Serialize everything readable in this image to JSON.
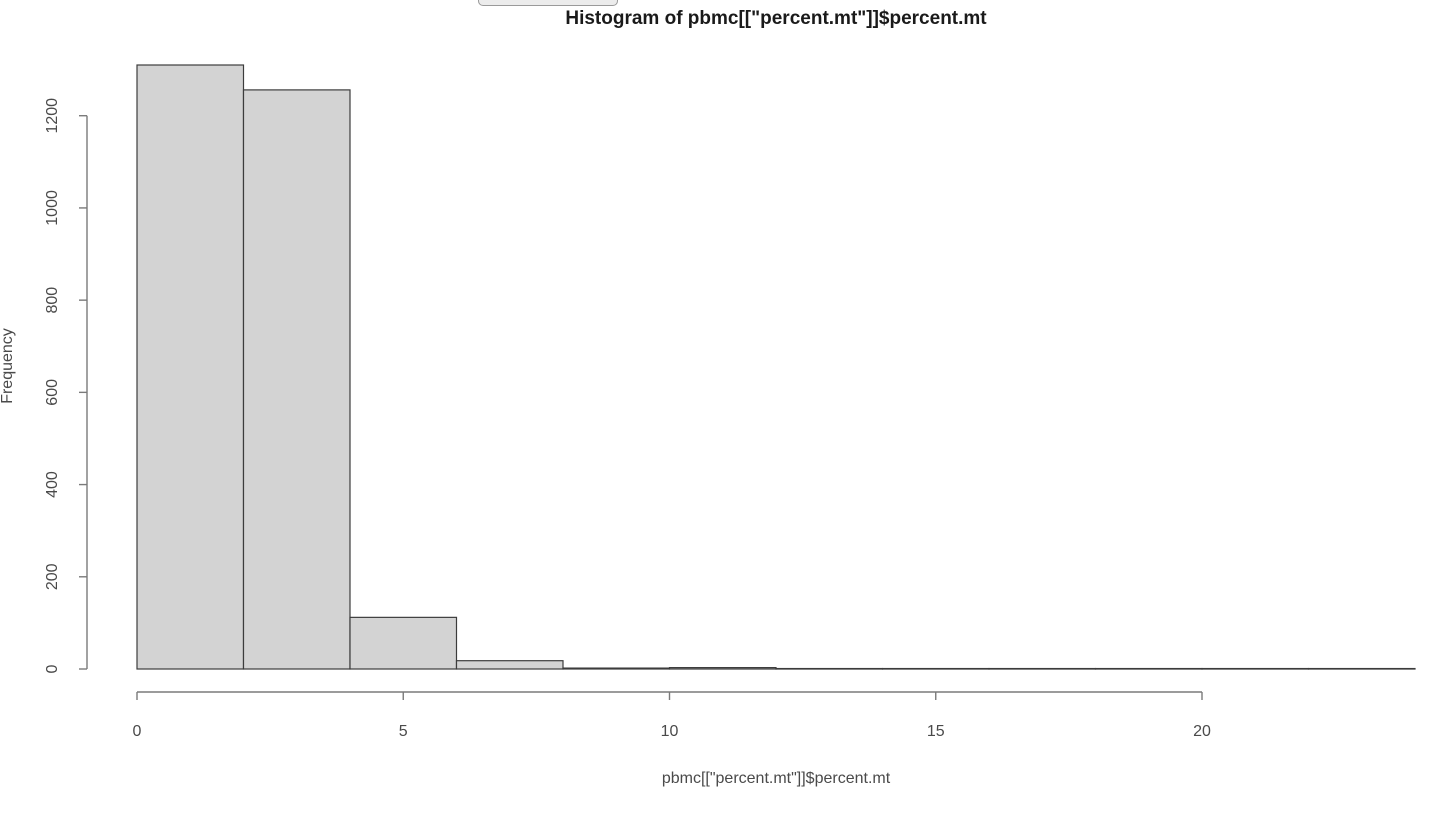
{
  "chart_data": {
    "type": "bar",
    "title": "Histogram of pbmc[[\"percent.mt\"]]$percent.mt",
    "xlabel": "pbmc[[\"percent.mt\"]]$percent.mt",
    "ylabel": "Frequency",
    "bin_edges": [
      0,
      2,
      4,
      6,
      8,
      10,
      12,
      14,
      16,
      18,
      20,
      22,
      24
    ],
    "values": [
      1310,
      1256,
      112,
      18,
      2,
      3,
      1,
      1,
      1,
      1,
      1,
      1
    ],
    "xlim": [
      0,
      24
    ],
    "ylim": [
      0,
      1310
    ],
    "x_ticks": [
      0,
      5,
      10,
      15,
      20
    ],
    "x_tick_labels": [
      "0",
      "5",
      "10",
      "15",
      "20"
    ],
    "y_ticks": [
      0,
      200,
      400,
      600,
      800,
      1000,
      1200
    ],
    "y_tick_labels": [
      "0",
      "200",
      "400",
      "600",
      "800",
      "1000",
      "1200"
    ],
    "bar_fill": "#d3d3d3",
    "bar_stroke": "#3c3c3c",
    "grid": false,
    "legend": "none"
  }
}
